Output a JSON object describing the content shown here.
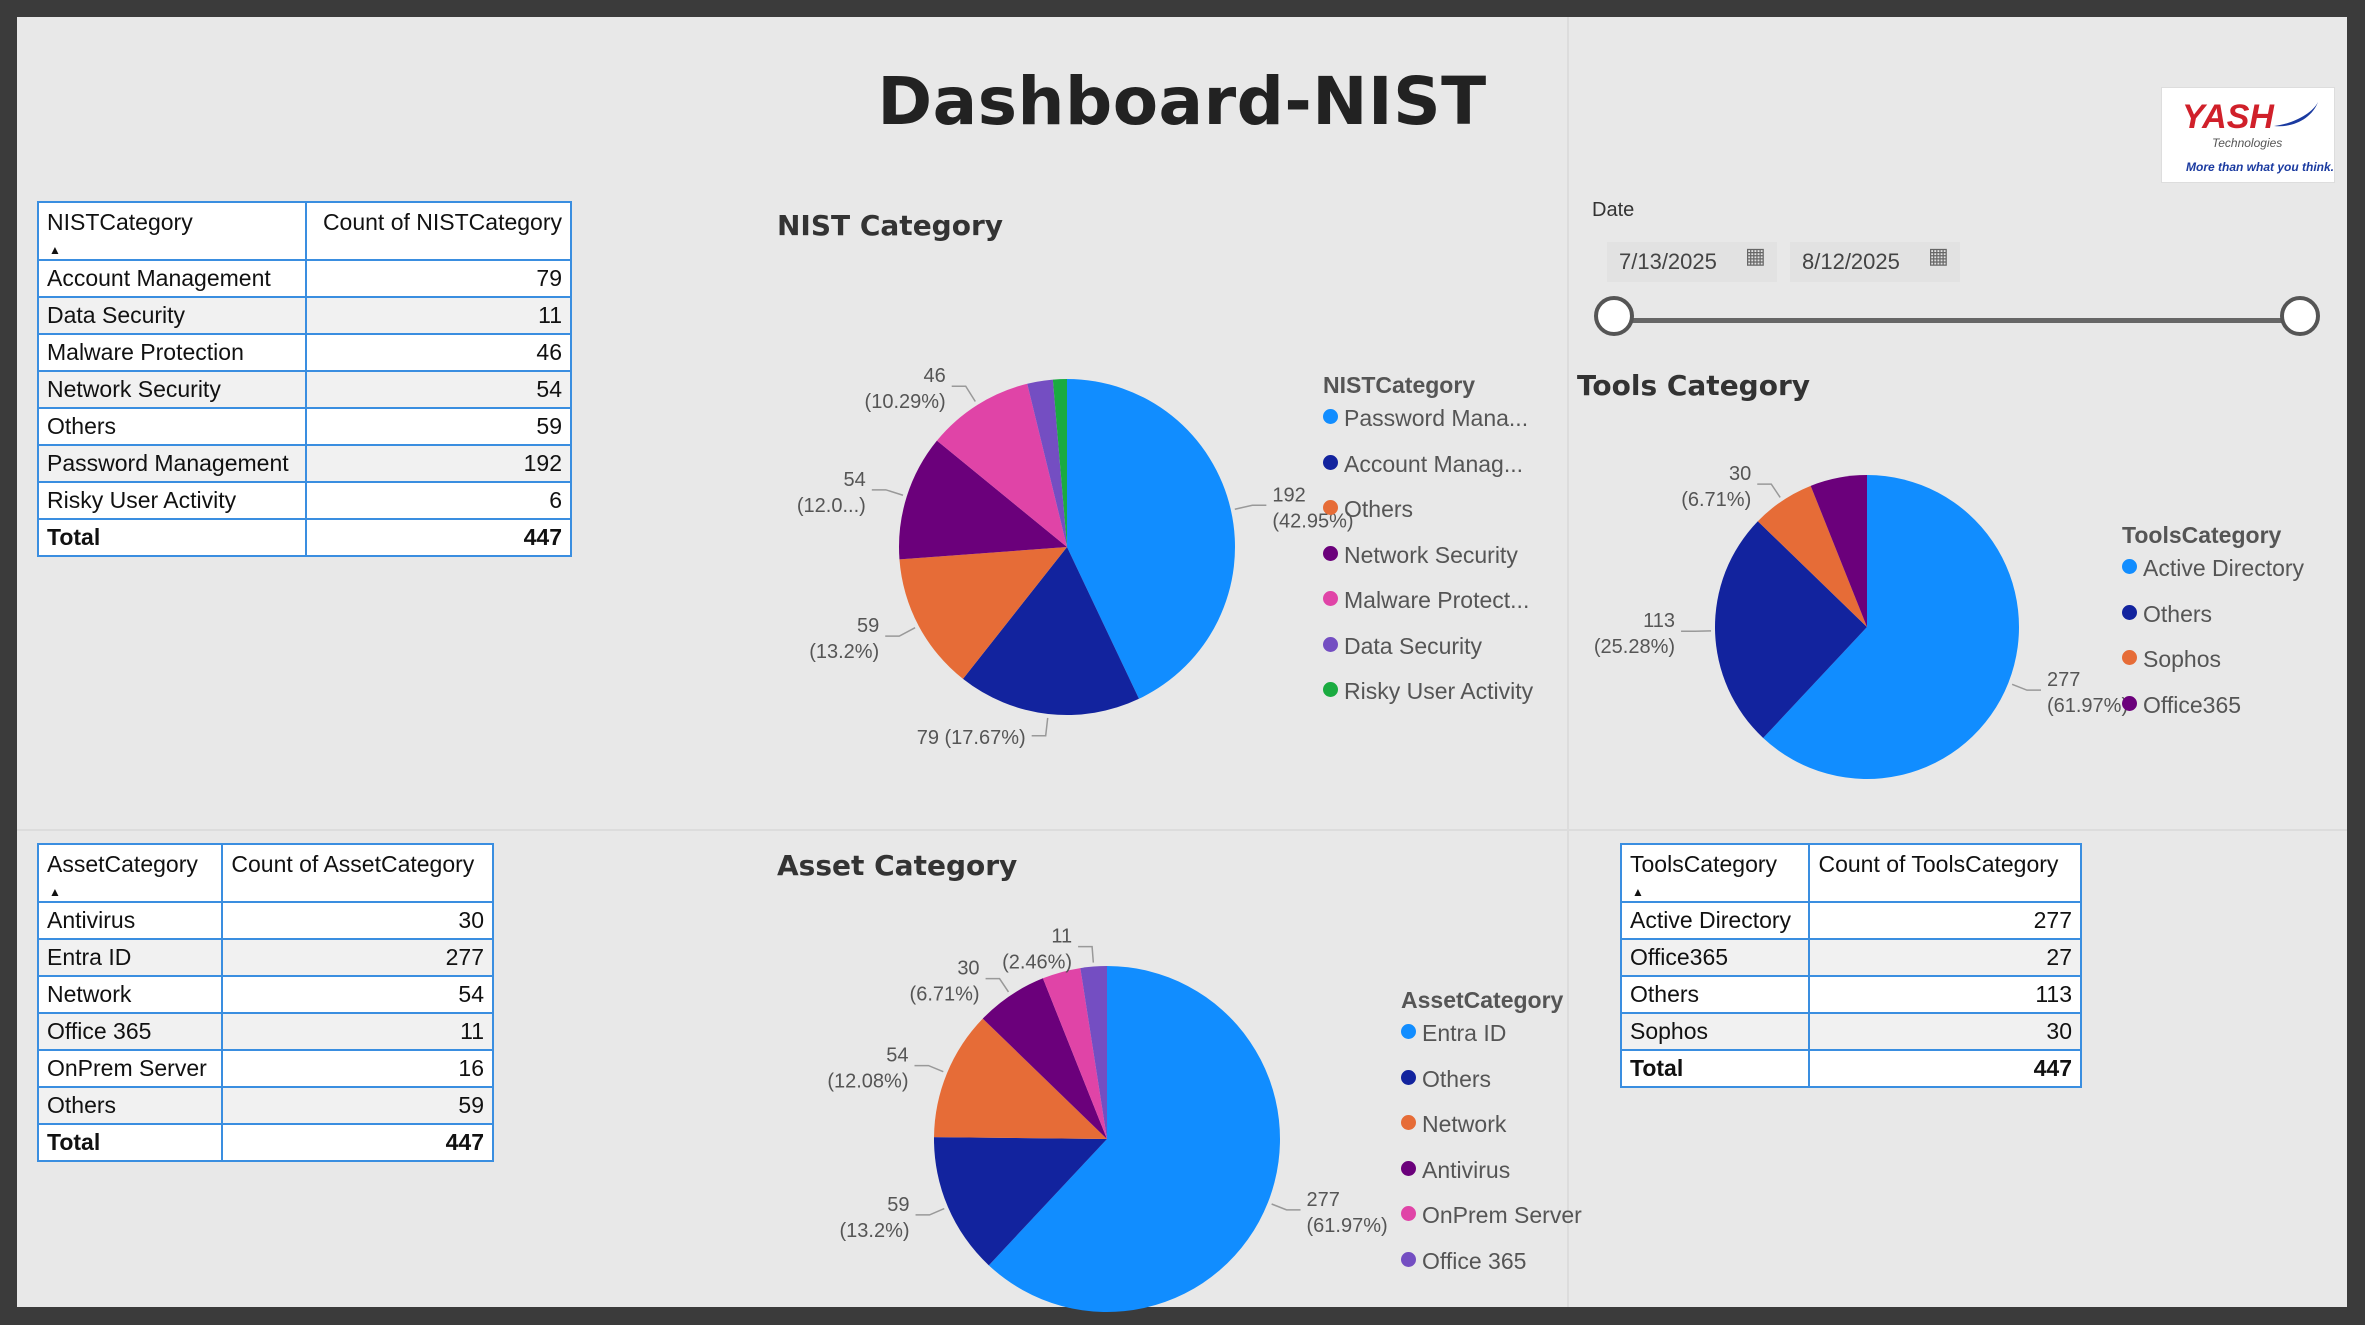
{
  "title": "Dashboard-NIST",
  "logo": {
    "brand": "YASH",
    "sub": "Technologies",
    "tagline": "More than what you think."
  },
  "nist_table": {
    "headers": [
      "NISTCategory",
      "Count of NISTCategory"
    ],
    "rows": [
      [
        "Account Management",
        "79"
      ],
      [
        "Data Security",
        "11"
      ],
      [
        "Malware Protection",
        "46"
      ],
      [
        "Network Security",
        "54"
      ],
      [
        "Others",
        "59"
      ],
      [
        "Password Management",
        "192"
      ],
      [
        "Risky User Activity",
        "6"
      ]
    ],
    "total": [
      "Total",
      "447"
    ]
  },
  "asset_table": {
    "headers": [
      "AssetCategory",
      "Count of AssetCategory"
    ],
    "rows": [
      [
        "Antivirus",
        "30"
      ],
      [
        "Entra ID",
        "277"
      ],
      [
        "Network",
        "54"
      ],
      [
        "Office 365",
        "11"
      ],
      [
        "OnPrem Server",
        "16"
      ],
      [
        "Others",
        "59"
      ]
    ],
    "total": [
      "Total",
      "447"
    ]
  },
  "tools_table": {
    "headers": [
      "ToolsCategory",
      "Count of ToolsCategory"
    ],
    "rows": [
      [
        "Active Directory",
        "277"
      ],
      [
        "Office365",
        "27"
      ],
      [
        "Others",
        "113"
      ],
      [
        "Sophos",
        "30"
      ]
    ],
    "total": [
      "Total",
      "447"
    ]
  },
  "date_filter": {
    "label": "Date",
    "start": "7/13/2025",
    "end": "8/12/2025"
  },
  "chart_data": [
    {
      "type": "pie",
      "title": "NIST Category",
      "legend_title": "NISTCategory",
      "legend_position": "right",
      "slices": [
        {
          "label": "Password Management",
          "legend": "Password Mana...",
          "value": 192,
          "pct": "42.95%",
          "color": "#118dff"
        },
        {
          "label": "Account Management",
          "legend": "Account Manag...",
          "value": 79,
          "pct": "17.67%",
          "color": "#12239e"
        },
        {
          "label": "Others",
          "legend": "Others",
          "value": 59,
          "pct": "13.2%",
          "color": "#e66c37"
        },
        {
          "label": "Network Security",
          "legend": "Network Security",
          "value": 54,
          "pct": "12.0...",
          "color": "#6b007b"
        },
        {
          "label": "Malware Protection",
          "legend": "Malware Protect...",
          "value": 46,
          "pct": "10.29%",
          "color": "#e044a7"
        },
        {
          "label": "Data Security",
          "legend": "Data Security",
          "value": 11,
          "pct": "",
          "color": "#744ec2"
        },
        {
          "label": "Risky User Activity",
          "legend": "Risky User Activity",
          "value": 6,
          "pct": "",
          "color": "#1aab40"
        }
      ]
    },
    {
      "type": "pie",
      "title": "Tools Category",
      "legend_title": "ToolsCategory",
      "legend_position": "right",
      "slices": [
        {
          "label": "Active Directory",
          "legend": "Active Directory",
          "value": 277,
          "pct": "61.97%",
          "color": "#118dff"
        },
        {
          "label": "Others",
          "legend": "Others",
          "value": 113,
          "pct": "25.28%",
          "color": "#12239e"
        },
        {
          "label": "Sophos",
          "legend": "Sophos",
          "value": 30,
          "pct": "6.71%",
          "color": "#e66c37"
        },
        {
          "label": "Office365",
          "legend": "Office365",
          "value": 27,
          "pct": "",
          "color": "#6b007b"
        }
      ]
    },
    {
      "type": "pie",
      "title": "Asset Category",
      "legend_title": "AssetCategory",
      "legend_position": "right",
      "slices": [
        {
          "label": "Entra ID",
          "legend": "Entra ID",
          "value": 277,
          "pct": "61.97%",
          "color": "#118dff"
        },
        {
          "label": "Others",
          "legend": "Others",
          "value": 59,
          "pct": "13.2%",
          "color": "#12239e"
        },
        {
          "label": "Network",
          "legend": "Network",
          "value": 54,
          "pct": "12.08%",
          "color": "#e66c37"
        },
        {
          "label": "Antivirus",
          "legend": "Antivirus",
          "value": 30,
          "pct": "6.71%",
          "color": "#6b007b"
        },
        {
          "label": "OnPrem Server",
          "legend": "OnPrem Server",
          "value": 16,
          "pct": "",
          "color": "#e044a7"
        },
        {
          "label": "Office 365",
          "legend": "Office 365",
          "value": 11,
          "pct": "2.46%",
          "color": "#744ec2"
        }
      ]
    }
  ]
}
